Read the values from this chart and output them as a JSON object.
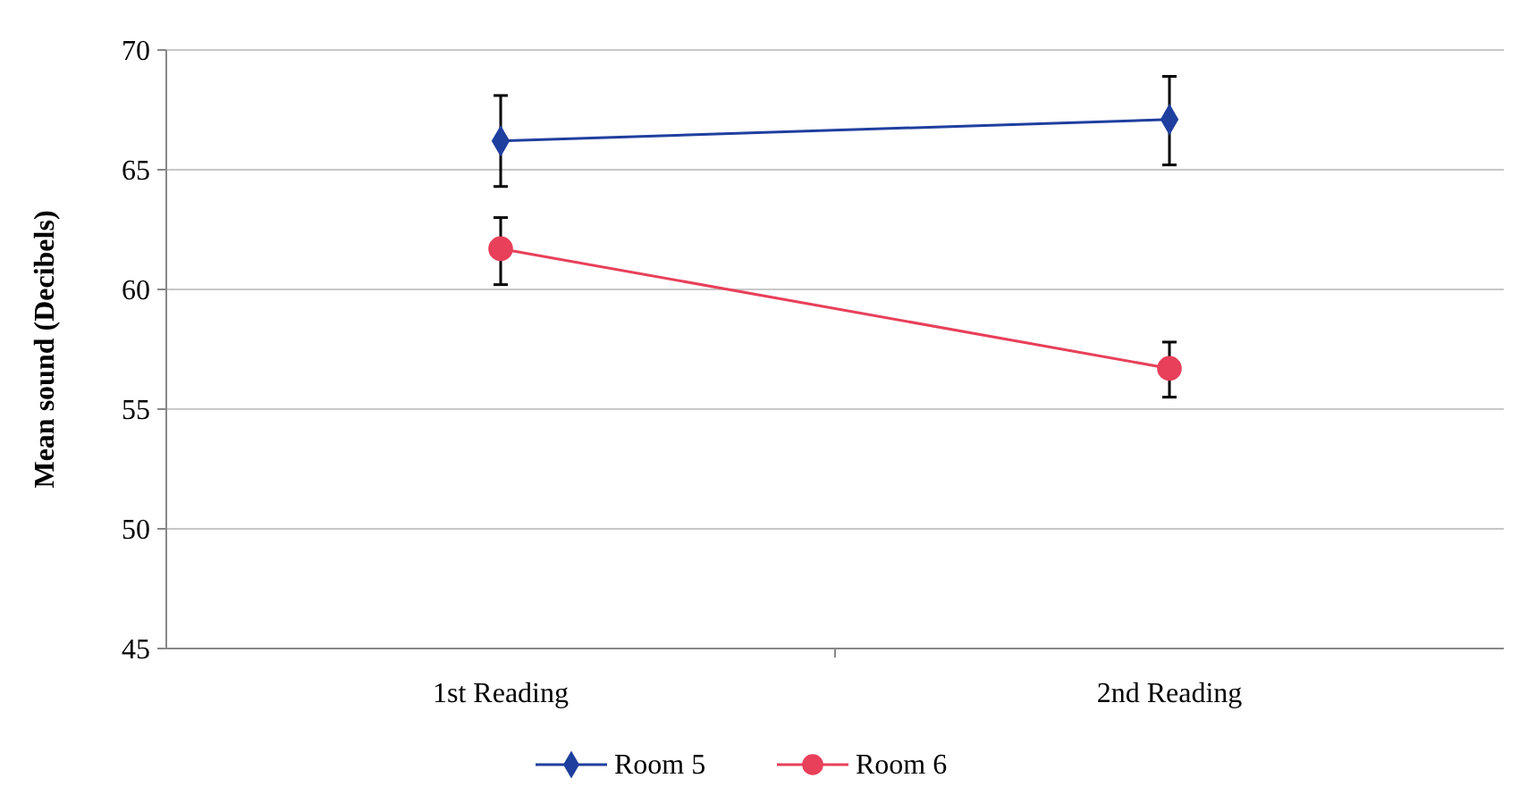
{
  "chart_data": {
    "type": "line",
    "ylabel": "Mean sound (Decibels)",
    "categories": [
      "1st Reading",
      "2nd Reading"
    ],
    "series": [
      {
        "name": "Room 5",
        "color": "#1f3f9f",
        "values": [
          66.2,
          67.1
        ],
        "errors": [
          [
            64.3,
            68.1
          ],
          [
            65.2,
            68.9
          ]
        ],
        "marker": "diamond"
      },
      {
        "name": "Room 6",
        "color": "#e8405a",
        "values": [
          61.7,
          56.7
        ],
        "errors": [
          [
            60.2,
            63.0
          ],
          [
            55.5,
            57.8
          ]
        ],
        "marker": "circle"
      }
    ],
    "ylim": [
      45,
      70
    ],
    "yticks": [
      45,
      50,
      55,
      60,
      65,
      70
    ],
    "grid": "y",
    "legend": "bottom"
  }
}
